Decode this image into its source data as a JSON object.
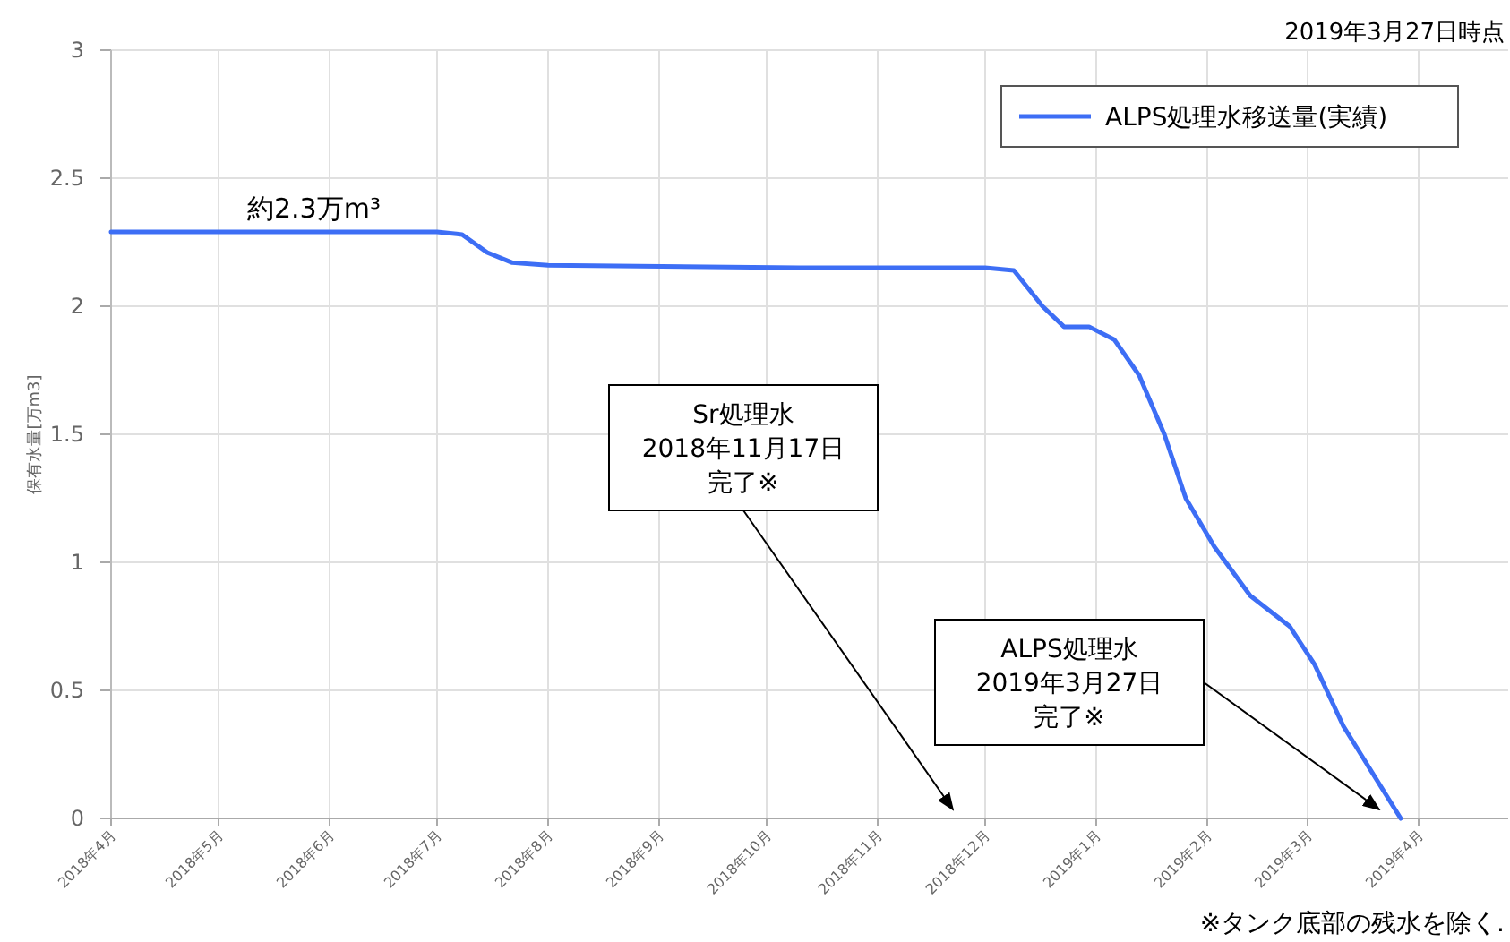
{
  "chart_data": {
    "type": "line",
    "ylabel": "保有水量[万m3]",
    "x": [
      "2018-04-01",
      "2018-05-15",
      "2018-07-01",
      "2018-07-08",
      "2018-07-15",
      "2018-07-22",
      "2018-08-01",
      "2018-10-10",
      "2018-12-01",
      "2018-12-09",
      "2018-12-17",
      "2018-12-23",
      "2018-12-30",
      "2019-01-06",
      "2019-01-13",
      "2019-01-20",
      "2019-01-26",
      "2019-02-03",
      "2019-02-13",
      "2019-02-24",
      "2019-03-03",
      "2019-03-11",
      "2019-03-27"
    ],
    "series": [
      {
        "name": "ALPS処理水移送量(実績)",
        "color": "#3d6ef5",
        "values": [
          2.29,
          2.29,
          2.29,
          2.28,
          2.21,
          2.17,
          2.16,
          2.15,
          2.15,
          2.14,
          2.0,
          1.92,
          1.92,
          1.87,
          1.73,
          1.5,
          1.25,
          1.06,
          0.87,
          0.75,
          0.6,
          0.36,
          0
        ]
      }
    ],
    "xlim": [
      "2018-04-01",
      "2019-04-26"
    ],
    "xticks": [
      {
        "value": "2018-04-01",
        "label": "2018年4月"
      },
      {
        "value": "2018-05-01",
        "label": "2018年5月"
      },
      {
        "value": "2018-06-01",
        "label": "2018年6月"
      },
      {
        "value": "2018-07-01",
        "label": "2018年7月"
      },
      {
        "value": "2018-08-01",
        "label": "2018年8月"
      },
      {
        "value": "2018-09-01",
        "label": "2018年9月"
      },
      {
        "value": "2018-10-01",
        "label": "2018年10月"
      },
      {
        "value": "2018-11-01",
        "label": "2018年11月"
      },
      {
        "value": "2018-12-01",
        "label": "2018年12月"
      },
      {
        "value": "2019-01-01",
        "label": "2019年1月"
      },
      {
        "value": "2019-02-01",
        "label": "2019年2月"
      },
      {
        "value": "2019-03-01",
        "label": "2019年3月"
      },
      {
        "value": "2019-04-01",
        "label": "2019年4月"
      }
    ],
    "ylim": [
      0,
      3
    ],
    "yticks": [
      0,
      0.5,
      1,
      1.5,
      2,
      2.5,
      3
    ],
    "grid": true,
    "legend": "top right",
    "line_style": "solid",
    "annotations": [
      "2019年3月27日時点",
      "※タンク底部の残水を除く.",
      {
        "text": "約2.3万m³",
        "x": "2018-05-15",
        "y": 2.29
      },
      "Sr処理水",
      "2018年11月17日",
      "完了※",
      "ALPS処理水",
      "2019年3月27日",
      "完了※"
    ]
  }
}
